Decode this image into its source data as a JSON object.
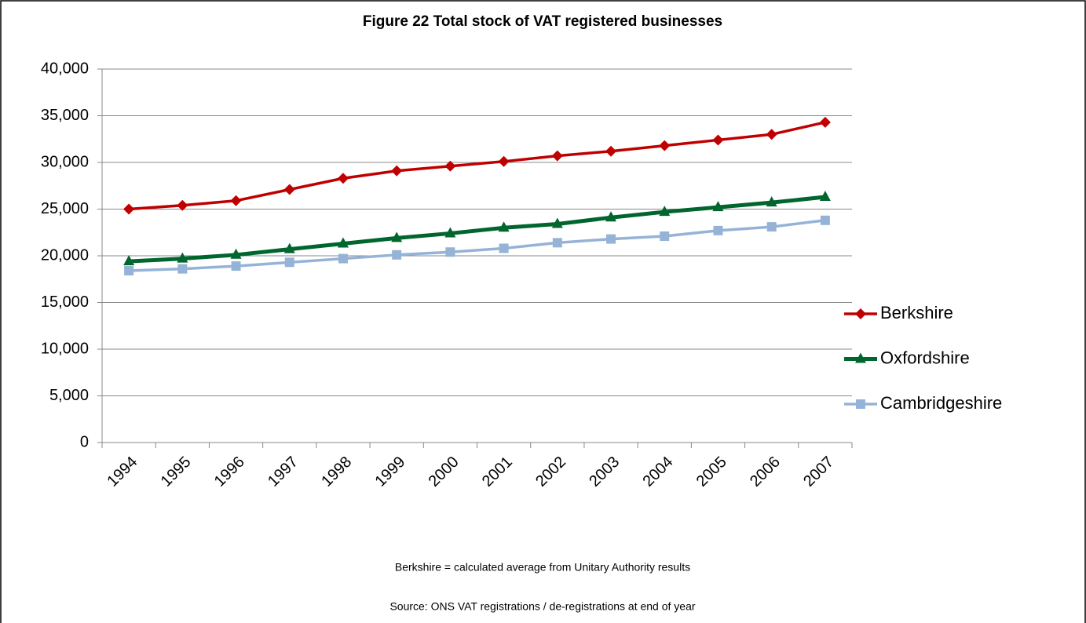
{
  "chart_data": {
    "type": "line",
    "title": "Figure 22  Total stock of VAT registered businesses",
    "categories": [
      "1994",
      "1995",
      "1996",
      "1997",
      "1998",
      "1999",
      "2000",
      "2001",
      "2002",
      "2003",
      "2004",
      "2005",
      "2006",
      "2007"
    ],
    "series": [
      {
        "name": "Berkshire",
        "color": "#c00000",
        "marker": "diamond",
        "values": [
          25000,
          25400,
          25900,
          27100,
          28300,
          29100,
          29600,
          30100,
          30700,
          31200,
          31800,
          32400,
          33000,
          34300
        ]
      },
      {
        "name": "Oxfordshire",
        "color": "#00662e",
        "marker": "triangle",
        "values": [
          19400,
          19700,
          20100,
          20700,
          21300,
          21900,
          22400,
          23000,
          23400,
          24100,
          24700,
          25200,
          25700,
          26300
        ]
      },
      {
        "name": "Cambridgeshire",
        "color": "#95b3d7",
        "marker": "square",
        "values": [
          18400,
          18600,
          18900,
          19300,
          19700,
          20100,
          20400,
          20800,
          21400,
          21800,
          22100,
          22700,
          23100,
          23800
        ]
      }
    ],
    "ylim": [
      0,
      40000
    ],
    "yticks": [
      0,
      {
        "value": 5000,
        "label": "5,000"
      },
      {
        "value": 10000,
        "label": "10,000"
      },
      {
        "value": 15000,
        "label": "15,000"
      },
      {
        "value": 20000,
        "label": "20,000"
      },
      {
        "value": 25000,
        "label": "25,000"
      },
      {
        "value": 30000,
        "label": "30,000"
      },
      {
        "value": 35000,
        "label": "35,000"
      },
      {
        "value": 40000,
        "label": "40,000"
      }
    ],
    "grid": true,
    "legend": "right",
    "notes": [
      "Berkshire = calculated average from Unitary Authority results",
      "Source: ONS VAT registrations / de-registrations at end of year"
    ]
  }
}
